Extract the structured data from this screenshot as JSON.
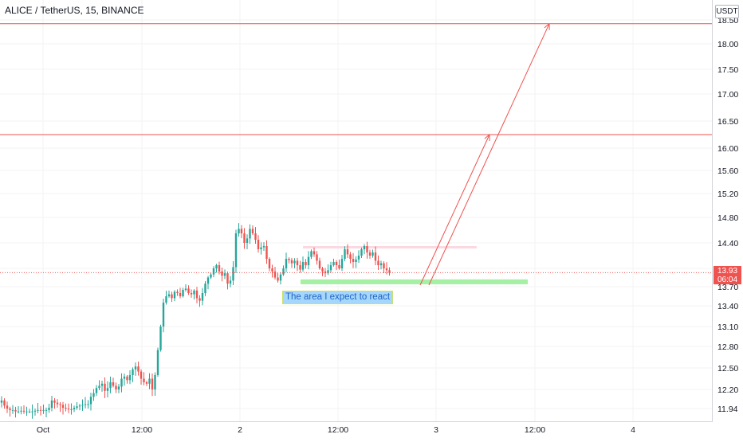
{
  "header": {
    "title": "ALICE / TetherUS, 15, BINANCE",
    "currency": "USDT"
  },
  "last_price": {
    "value": "13.93",
    "countdown": "06:04",
    "color": "#ef5350"
  },
  "annotation": {
    "label": "The area I expect to react"
  },
  "colors": {
    "up": "#26a69a",
    "down": "#ef5350",
    "resistance_line": "#ef5350",
    "support_zone": "#a5f0a5",
    "resistance_zone": "#fcd9e0",
    "arrow": "#ef5350"
  },
  "chart_data": {
    "type": "candlestick",
    "symbol": "ALICE / TetherUS",
    "timeframe": "15",
    "exchange": "BINANCE",
    "x_ticks": [
      "Oct",
      "12:00",
      "2",
      "12:00",
      "3",
      "12:00",
      "4"
    ],
    "y_ticks": [
      18.5,
      18.0,
      17.5,
      17.0,
      16.5,
      16.0,
      15.6,
      15.2,
      14.8,
      14.4,
      14.0,
      13.7,
      13.4,
      13.1,
      12.8,
      12.5,
      12.2,
      11.94
    ],
    "y_tick_labels": [
      "18.50",
      "18.00",
      "17.50",
      "17.00",
      "16.50",
      "16.00",
      "15.60",
      "15.20",
      "14.80",
      "14.40",
      "14.00",
      "13.70",
      "13.40",
      "13.10",
      "12.80",
      "12.50",
      "12.20",
      "11.94"
    ],
    "horizontal_levels": [
      18.42,
      16.25
    ],
    "support_zone": [
      13.74,
      13.82
    ],
    "resistance_zone": [
      14.32,
      14.35
    ],
    "projection_targets": [
      18.42,
      16.25
    ],
    "closes": [
      12.05,
      11.98,
      11.94,
      11.92,
      11.92,
      11.9,
      11.9,
      11.91,
      11.9,
      11.9,
      11.9,
      11.9,
      11.91,
      11.92,
      11.91,
      11.92,
      11.92,
      11.95,
      12.05,
      12.02,
      12.0,
      11.99,
      11.95,
      11.94,
      11.93,
      11.93,
      11.95,
      11.97,
      11.98,
      11.99,
      12.0,
      12.0,
      12.1,
      12.15,
      12.22,
      12.25,
      12.28,
      12.18,
      12.22,
      12.3,
      12.25,
      12.2,
      12.24,
      12.35,
      12.38,
      12.33,
      12.4,
      12.48,
      12.52,
      12.45,
      12.35,
      12.3,
      12.28,
      12.35,
      12.2,
      12.4,
      12.75,
      13.1,
      13.45,
      13.55,
      13.58,
      13.52,
      13.62,
      13.6,
      13.55,
      13.65,
      13.67,
      13.6,
      13.58,
      13.64,
      13.52,
      13.48,
      13.6,
      13.75,
      13.85,
      13.9,
      14.0,
      14.05,
      13.95,
      13.88,
      13.92,
      13.75,
      13.8,
      14.02,
      14.55,
      14.62,
      14.55,
      14.4,
      14.47,
      14.62,
      14.55,
      14.45,
      14.3,
      14.33,
      14.35,
      14.15,
      14.0,
      13.95,
      13.85,
      13.8,
      13.9,
      14.0,
      14.15,
      14.13,
      14.08,
      14.12,
      14.05,
      13.98,
      14.1,
      14.05,
      14.18,
      14.27,
      14.22,
      14.12,
      14.0,
      13.95,
      13.92,
      13.97,
      14.05,
      14.1,
      14.05,
      14.0,
      14.15,
      14.3,
      14.22,
      14.15,
      14.1,
      14.14,
      14.2,
      14.3,
      14.35,
      14.25,
      14.2,
      14.25,
      14.12,
      14.05,
      14.08,
      14.0,
      13.97,
      13.93
    ]
  }
}
